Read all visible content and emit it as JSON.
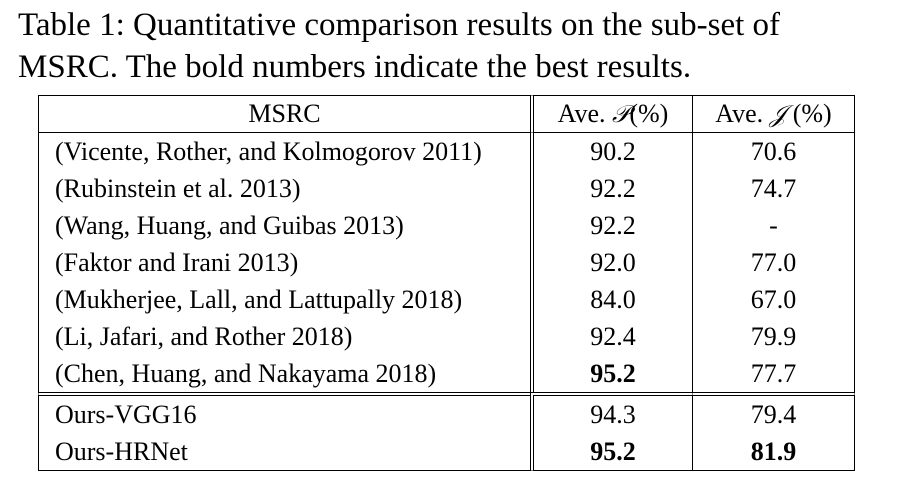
{
  "caption": {
    "line1": "Table 1: Quantitative comparison results on the sub-set of",
    "line2": "MSRC. The bold numbers indicate the best results."
  },
  "table": {
    "headers": {
      "method": "MSRC",
      "p_prefix": "Ave. ",
      "p_symbol": "𝒫",
      "p_suffix": "(%)",
      "j_prefix": "Ave. ",
      "j_symbol": "𝒥",
      "j_suffix": " (%)"
    },
    "rows": [
      {
        "method": "(Vicente, Rother, and Kolmogorov 2011)",
        "p": "90.2",
        "j": "70.6"
      },
      {
        "method": "(Rubinstein et al. 2013)",
        "p": "92.2",
        "j": "74.7"
      },
      {
        "method": "(Wang, Huang, and Guibas 2013)",
        "p": "92.2",
        "j": "-"
      },
      {
        "method": "(Faktor and Irani 2013)",
        "p": "92.0",
        "j": "77.0"
      },
      {
        "method": "(Mukherjee, Lall, and Lattupally 2018)",
        "p": "84.0",
        "j": "67.0"
      },
      {
        "method": "(Li, Jafari, and Rother 2018)",
        "p": "92.4",
        "j": "79.9"
      },
      {
        "method": "(Chen, Huang, and Nakayama 2018)",
        "p": "95.2",
        "j": "77.7"
      }
    ],
    "ours": [
      {
        "method": "Ours-VGG16",
        "p": "94.3",
        "j": "79.4"
      },
      {
        "method": "Ours-HRNet",
        "p": "95.2",
        "j": "81.9"
      }
    ],
    "bold_cells": [
      "rows.6.p",
      "ours.1.p",
      "ours.1.j"
    ]
  }
}
